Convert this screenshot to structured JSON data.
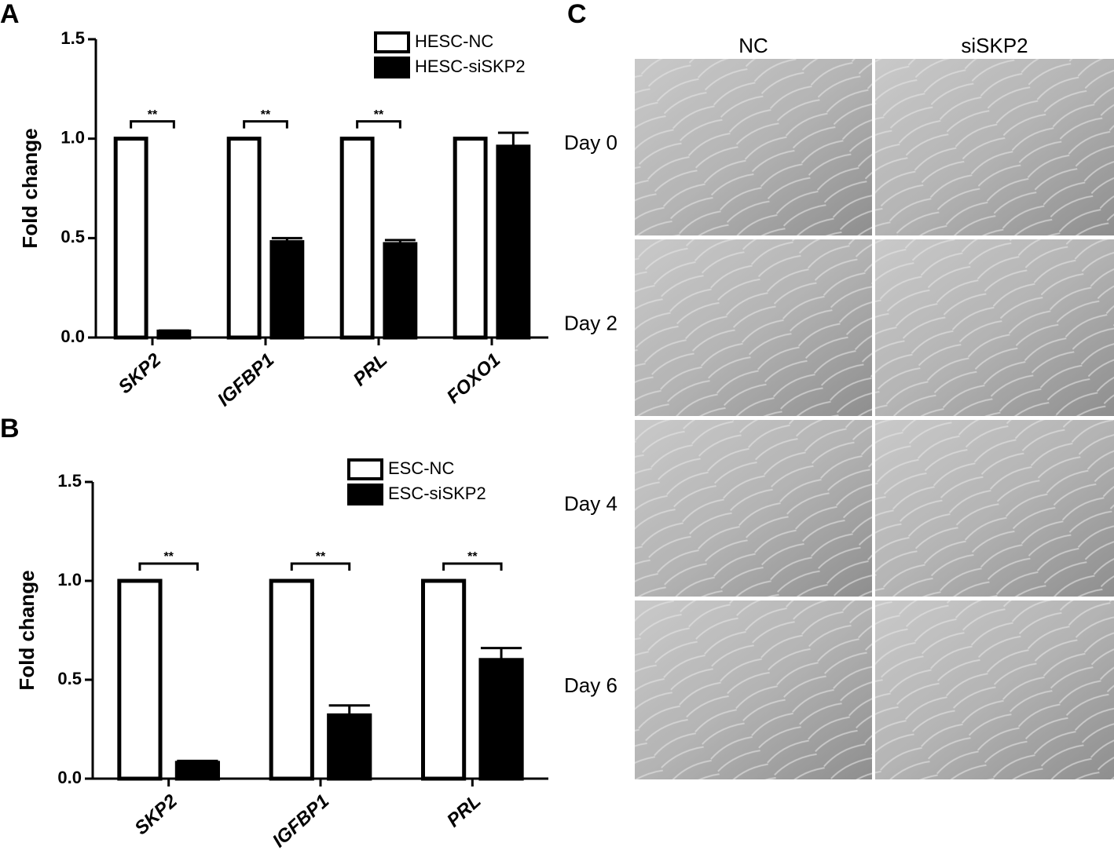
{
  "chart_data": [
    {
      "type": "bar",
      "panel_label": "A",
      "ylabel": "Fold change",
      "categories": [
        "SKP2",
        "IGFBP1",
        "PRL",
        "FOXO1"
      ],
      "series": [
        {
          "name": "HESC-NC",
          "color": "#ffffff",
          "values": [
            1.0,
            1.0,
            1.0,
            1.0
          ]
        },
        {
          "name": "HESC-siSKP2",
          "color": "#000000",
          "values": [
            0.03,
            0.48,
            0.47,
            0.96
          ],
          "errors": [
            0.005,
            0.02,
            0.02,
            0.07
          ]
        }
      ],
      "significance": [
        "**",
        "**",
        "**",
        null
      ],
      "ylim": [
        0,
        1.5
      ],
      "yticks": [
        {
          "value": 0,
          "label": "0.0"
        },
        0.5,
        {
          "value": 1,
          "label": "1.0"
        },
        1.5
      ],
      "legend": "upper right"
    },
    {
      "type": "bar",
      "panel_label": "B",
      "ylabel": "Fold change",
      "categories": [
        "SKP2",
        "IGFBP1",
        "PRL"
      ],
      "series": [
        {
          "name": "ESC-NC",
          "color": "#ffffff",
          "values": [
            1.0,
            1.0,
            1.0
          ]
        },
        {
          "name": "ESC-siSKP2",
          "color": "#000000",
          "values": [
            0.08,
            0.32,
            0.6
          ],
          "errors": [
            0.01,
            0.05,
            0.06
          ]
        }
      ],
      "significance": [
        "**",
        "**",
        "**"
      ],
      "ylim": [
        0,
        1.5
      ],
      "yticks": [
        {
          "value": 0,
          "label": "0.0"
        },
        0.5,
        {
          "value": 1,
          "label": "1.0"
        },
        1.5
      ],
      "legend": "upper right"
    }
  ],
  "panel_c": {
    "label": "C",
    "columns": [
      "NC",
      "siSKP2"
    ],
    "rows": [
      "Day 0",
      "Day 2",
      "Day 4",
      "Day 6"
    ]
  }
}
